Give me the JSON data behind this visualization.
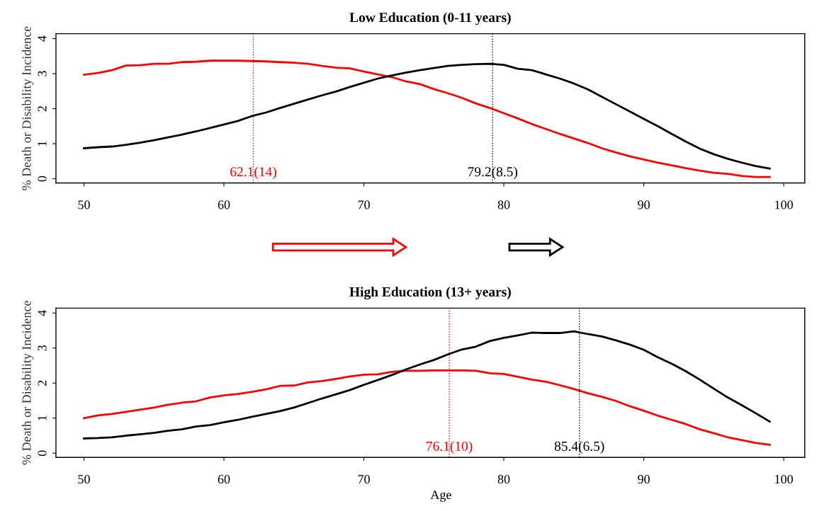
{
  "chart_data": [
    {
      "type": "line",
      "title": "Low Education (0-11 years)",
      "ylabel": "% Death or Disability Incidence",
      "x": [
        50,
        51,
        52,
        53,
        54,
        55,
        56,
        57,
        58,
        59,
        60,
        61,
        62,
        63,
        64,
        65,
        66,
        67,
        68,
        69,
        70,
        71,
        72,
        73,
        74,
        75,
        76,
        77,
        78,
        79,
        80,
        81,
        82,
        83,
        84,
        85,
        86,
        87,
        88,
        89,
        90,
        91,
        92,
        93,
        94,
        95,
        96,
        97,
        98,
        99
      ],
      "series": [
        {
          "color": "#ff0000",
          "values": [
            2.97,
            3.02,
            3.1,
            3.23,
            3.24,
            3.28,
            3.28,
            3.33,
            3.34,
            3.37,
            3.37,
            3.37,
            3.36,
            3.35,
            3.33,
            3.31,
            3.28,
            3.22,
            3.17,
            3.15,
            3.06,
            2.98,
            2.9,
            2.78,
            2.7,
            2.56,
            2.44,
            2.31,
            2.15,
            2.02,
            1.87,
            1.72,
            1.56,
            1.42,
            1.28,
            1.15,
            1.02,
            0.87,
            0.75,
            0.64,
            0.55,
            0.46,
            0.38,
            0.3,
            0.23,
            0.17,
            0.14,
            0.08,
            0.05,
            0.05
          ]
        },
        {
          "color": "#000000",
          "values": [
            0.87,
            0.9,
            0.92,
            0.97,
            1.03,
            1.1,
            1.18,
            1.26,
            1.35,
            1.45,
            1.55,
            1.65,
            1.79,
            1.89,
            2.02,
            2.14,
            2.26,
            2.38,
            2.49,
            2.62,
            2.74,
            2.86,
            2.95,
            3.03,
            3.1,
            3.16,
            3.22,
            3.25,
            3.27,
            3.28,
            3.25,
            3.14,
            3.1,
            2.98,
            2.86,
            2.72,
            2.55,
            2.34,
            2.13,
            1.92,
            1.71,
            1.5,
            1.28,
            1.06,
            0.86,
            0.7,
            0.57,
            0.46,
            0.36,
            0.29
          ]
        }
      ],
      "ref_lines": [
        {
          "axis": "x",
          "value": 62.1,
          "label": "62.1(14)",
          "color": "#ff0000",
          "line_style": "dotted"
        },
        {
          "axis": "x",
          "value": 79.2,
          "label": "79.2(8.5)",
          "color": "#000000",
          "line_style": "dotted"
        }
      ],
      "xlim": [
        48,
        101.5
      ],
      "xticks": [
        50,
        60,
        70,
        80,
        90,
        100
      ],
      "ylim": [
        -0.12,
        4.14
      ],
      "yticks": [
        0,
        1,
        2,
        3,
        4
      ],
      "grid": false,
      "marker": "none",
      "line_style": "solid"
    },
    {
      "type": "line",
      "title": "High Education (13+ years)",
      "xlabel": "Age",
      "ylabel": "% Death or Disability Incidence",
      "x": [
        50,
        51,
        52,
        53,
        54,
        55,
        56,
        57,
        58,
        59,
        60,
        61,
        62,
        63,
        64,
        65,
        66,
        67,
        68,
        69,
        70,
        71,
        72,
        73,
        74,
        75,
        76,
        77,
        78,
        79,
        80,
        81,
        82,
        83,
        84,
        85,
        86,
        87,
        88,
        89,
        90,
        91,
        92,
        93,
        94,
        95,
        96,
        97,
        98,
        99
      ],
      "series": [
        {
          "color": "#ff0000",
          "values": [
            1.0,
            1.08,
            1.12,
            1.18,
            1.24,
            1.3,
            1.38,
            1.44,
            1.48,
            1.59,
            1.65,
            1.69,
            1.75,
            1.82,
            1.92,
            1.93,
            2.02,
            2.06,
            2.12,
            2.19,
            2.24,
            2.25,
            2.32,
            2.35,
            2.35,
            2.36,
            2.36,
            2.36,
            2.35,
            2.28,
            2.26,
            2.18,
            2.1,
            2.04,
            1.94,
            1.83,
            1.71,
            1.61,
            1.49,
            1.34,
            1.21,
            1.07,
            0.95,
            0.83,
            0.68,
            0.57,
            0.45,
            0.37,
            0.29,
            0.24
          ]
        },
        {
          "color": "#000000",
          "values": [
            0.42,
            0.43,
            0.45,
            0.5,
            0.54,
            0.58,
            0.64,
            0.68,
            0.76,
            0.8,
            0.88,
            0.95,
            1.04,
            1.12,
            1.2,
            1.3,
            1.43,
            1.56,
            1.68,
            1.8,
            1.95,
            2.09,
            2.23,
            2.39,
            2.53,
            2.66,
            2.82,
            2.96,
            3.04,
            3.2,
            3.29,
            3.36,
            3.44,
            3.43,
            3.43,
            3.48,
            3.4,
            3.33,
            3.22,
            3.1,
            2.95,
            2.74,
            2.55,
            2.34,
            2.1,
            1.84,
            1.59,
            1.37,
            1.14,
            0.9
          ]
        }
      ],
      "ref_lines": [
        {
          "axis": "x",
          "value": 76.1,
          "label": "76.1(10)",
          "color": "#ff0000",
          "line_style": "dotted"
        },
        {
          "axis": "x",
          "value": 85.4,
          "label": "85.4(6.5)",
          "color": "#000000",
          "line_style": "dotted"
        }
      ],
      "xlim": [
        48,
        101.5
      ],
      "xticks": [
        50,
        60,
        70,
        80,
        90,
        100
      ],
      "ylim": [
        -0.12,
        4.14
      ],
      "yticks": [
        0,
        1,
        2,
        3,
        4
      ],
      "grid": false,
      "marker": "none",
      "line_style": "solid"
    }
  ]
}
